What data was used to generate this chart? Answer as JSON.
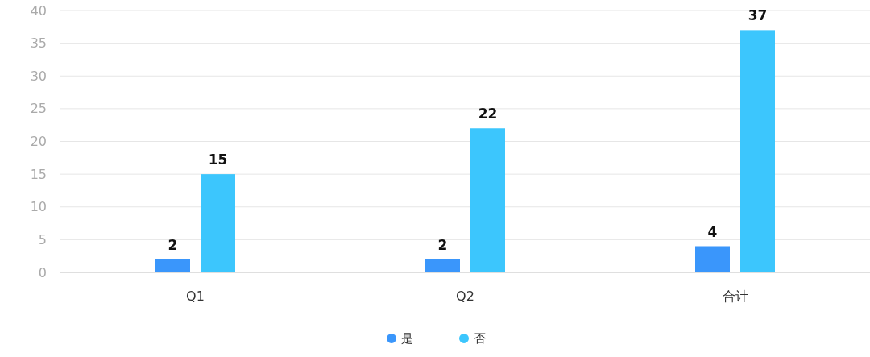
{
  "chart_data": {
    "type": "bar",
    "categories": [
      "Q1",
      "Q2",
      "合计"
    ],
    "series": [
      {
        "name": "是",
        "color": "#3a96fb",
        "values": [
          2,
          2,
          4
        ]
      },
      {
        "name": "否",
        "color": "#3cc6fd",
        "values": [
          15,
          22,
          37
        ]
      }
    ],
    "ylim": [
      0,
      40
    ],
    "yticks": [
      0,
      5,
      10,
      15,
      20,
      25,
      30,
      35,
      40
    ],
    "grid": "y",
    "legend": "bottom",
    "data_labels": true
  }
}
